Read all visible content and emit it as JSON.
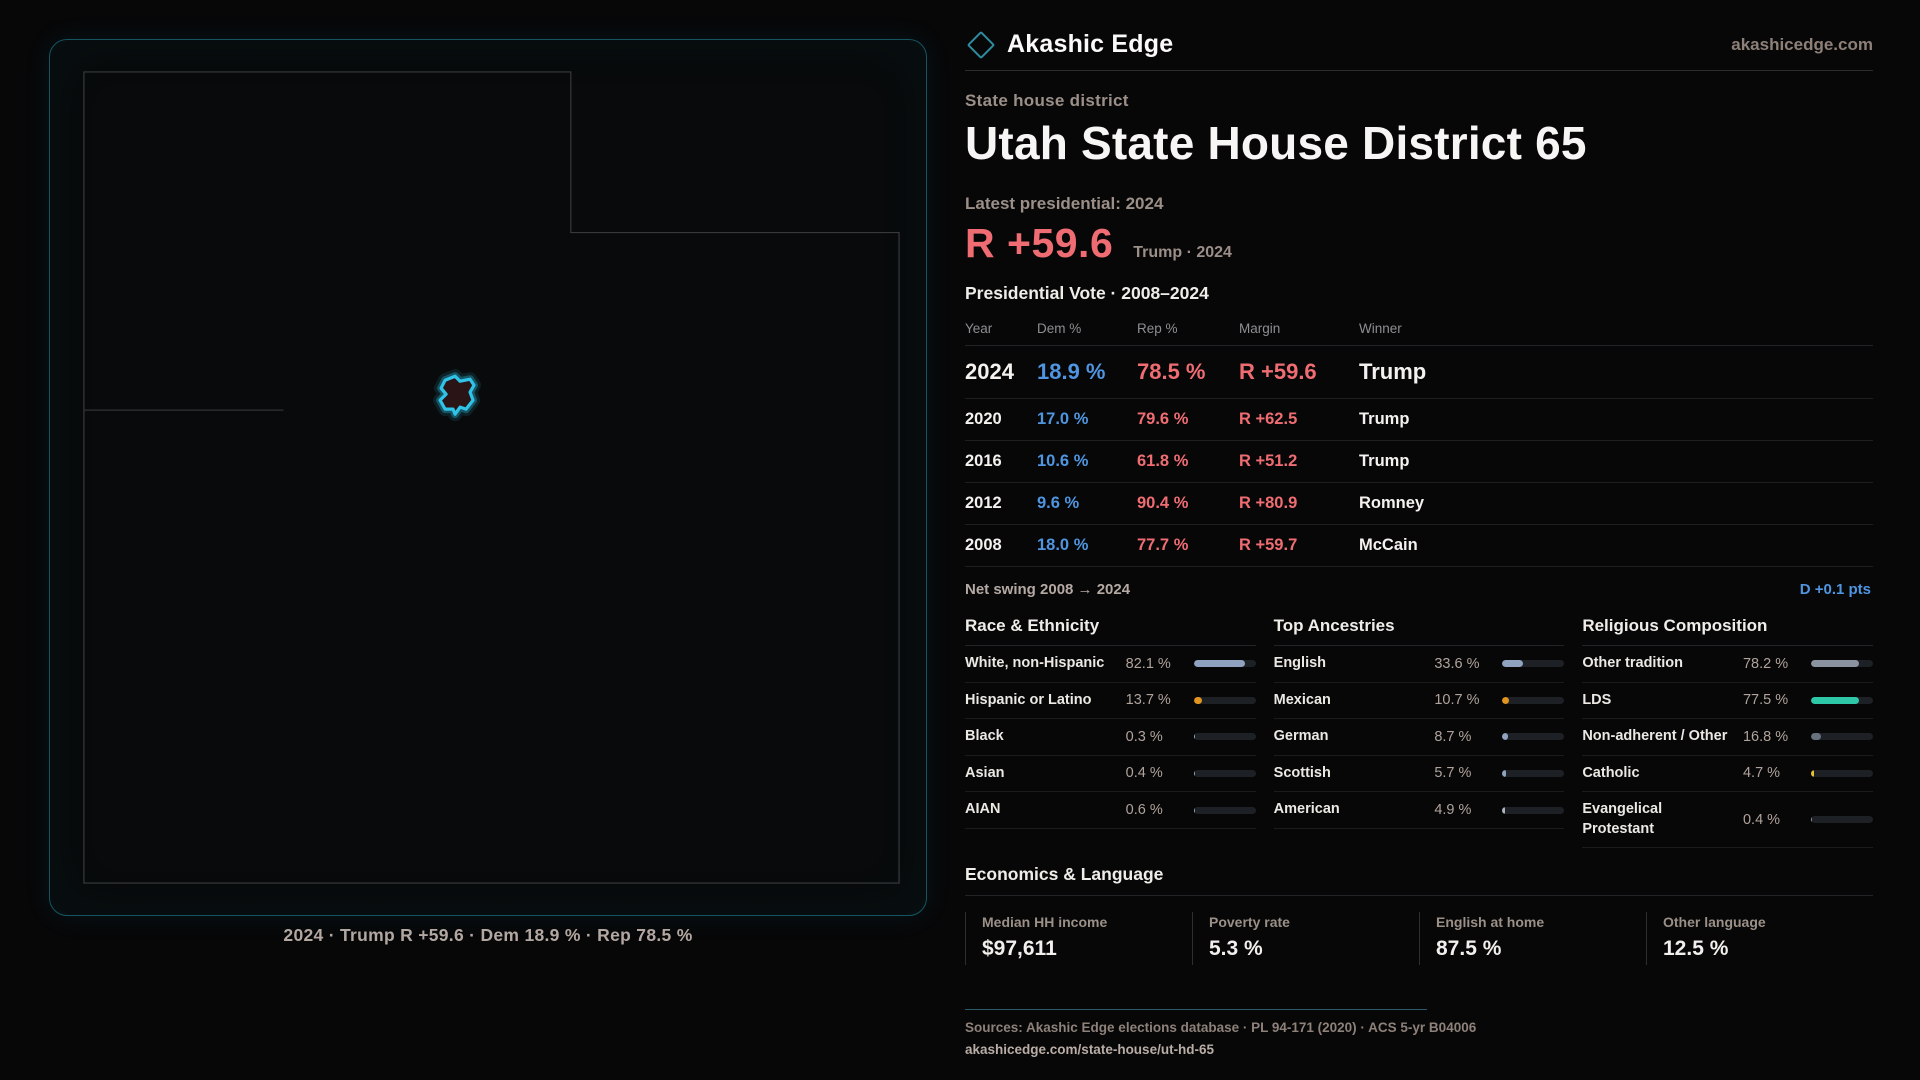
{
  "brand": {
    "name": "Akashic Edge",
    "domain": "akashicedge.com"
  },
  "hero": {
    "kicker": "State house district",
    "title": "Utah State House District 65",
    "latest_label": "Latest presidential: 2024",
    "margin": "R +59.6",
    "margin_detail": "Trump · 2024",
    "margin_color": "#ef6d72"
  },
  "vote_table": {
    "title": "Presidential Vote · 2008–2024",
    "columns": [
      "Year",
      "Dem %",
      "Rep %",
      "Margin",
      "Winner"
    ],
    "dem_color": "#4f95e0",
    "rep_color": "#ef6d72",
    "rows": [
      {
        "year": "2024",
        "dem": "18.9 %",
        "rep": "78.5 %",
        "margin": "R +59.6",
        "winner": "Trump"
      },
      {
        "year": "2020",
        "dem": "17.0 %",
        "rep": "79.6 %",
        "margin": "R +62.5",
        "winner": "Trump"
      },
      {
        "year": "2016",
        "dem": "10.6 %",
        "rep": "61.8 %",
        "margin": "R +51.2",
        "winner": "Trump"
      },
      {
        "year": "2012",
        "dem": "9.6 %",
        "rep": "90.4 %",
        "margin": "R +80.9",
        "winner": "Romney"
      },
      {
        "year": "2008",
        "dem": "18.0 %",
        "rep": "77.7 %",
        "margin": "R +59.7",
        "winner": "McCain"
      }
    ]
  },
  "net_swing": {
    "label": "Net swing 2008 → 2024",
    "value": "D +0.1 pts",
    "value_color": "#4f95e0"
  },
  "demographics": [
    {
      "title": "Race & Ethnicity",
      "rows": [
        {
          "label": "White, non-Hispanic",
          "value": "82.1 %",
          "pct": 82.1,
          "color": "#8fa3c0"
        },
        {
          "label": "Hispanic or Latino",
          "value": "13.7 %",
          "pct": 13.7,
          "color": "#e09520"
        },
        {
          "label": "Black",
          "value": "0.3 %",
          "pct": 0.3,
          "color": "#8fa3c0"
        },
        {
          "label": "Asian",
          "value": "0.4 %",
          "pct": 0.4,
          "color": "#8fa3c0"
        },
        {
          "label": "AIAN",
          "value": "0.6 %",
          "pct": 0.6,
          "color": "#8fa3c0"
        }
      ]
    },
    {
      "title": "Top Ancestries",
      "rows": [
        {
          "label": "English",
          "value": "33.6 %",
          "pct": 33.6,
          "color": "#8fa3c0"
        },
        {
          "label": "Mexican",
          "value": "10.7 %",
          "pct": 10.7,
          "color": "#e09520"
        },
        {
          "label": "German",
          "value": "8.7 %",
          "pct": 8.7,
          "color": "#8fa3c0"
        },
        {
          "label": "Scottish",
          "value": "5.7 %",
          "pct": 5.7,
          "color": "#8fa3c0"
        },
        {
          "label": "American",
          "value": "4.9 %",
          "pct": 4.9,
          "color": "#aab3bf"
        }
      ]
    },
    {
      "title": "Religious Composition",
      "rows": [
        {
          "label": "Other tradition",
          "value": "78.2 %",
          "pct": 78.2,
          "color": "#8b93a0"
        },
        {
          "label": "LDS",
          "value": "77.5 %",
          "pct": 77.5,
          "color": "#2ec8a8"
        },
        {
          "label": "Non-adherent / Other",
          "value": "16.8 %",
          "pct": 16.8,
          "color": "#68727f"
        },
        {
          "label": "Catholic",
          "value": "4.7 %",
          "pct": 4.7,
          "color": "#e6c235"
        },
        {
          "label": "Evangelical Protestant",
          "value": "0.4 %",
          "pct": 0.4,
          "color": "#8b93a0"
        }
      ]
    }
  ],
  "economics": {
    "title": "Economics & Language",
    "stats": [
      {
        "label": "Median HH income",
        "value": "$97,611"
      },
      {
        "label": "Poverty rate",
        "value": "5.3 %"
      },
      {
        "label": "English at home",
        "value": "87.5 %"
      },
      {
        "label": "Other language",
        "value": "12.5 %"
      }
    ]
  },
  "map": {
    "caption": "2024 · Trump R +59.6 · Dem 18.9 % · Rep 78.5 %",
    "district_color": "#2fc3e8",
    "outline_color": "#39393b",
    "panel_border_color": "#155561"
  },
  "footer": {
    "sources": "Sources: Akashic Edge elections database · PL 94-171 (2020) · ACS 5-yr B04006",
    "permalink": "akashicedge.com/state-house/ut-hd-65"
  }
}
